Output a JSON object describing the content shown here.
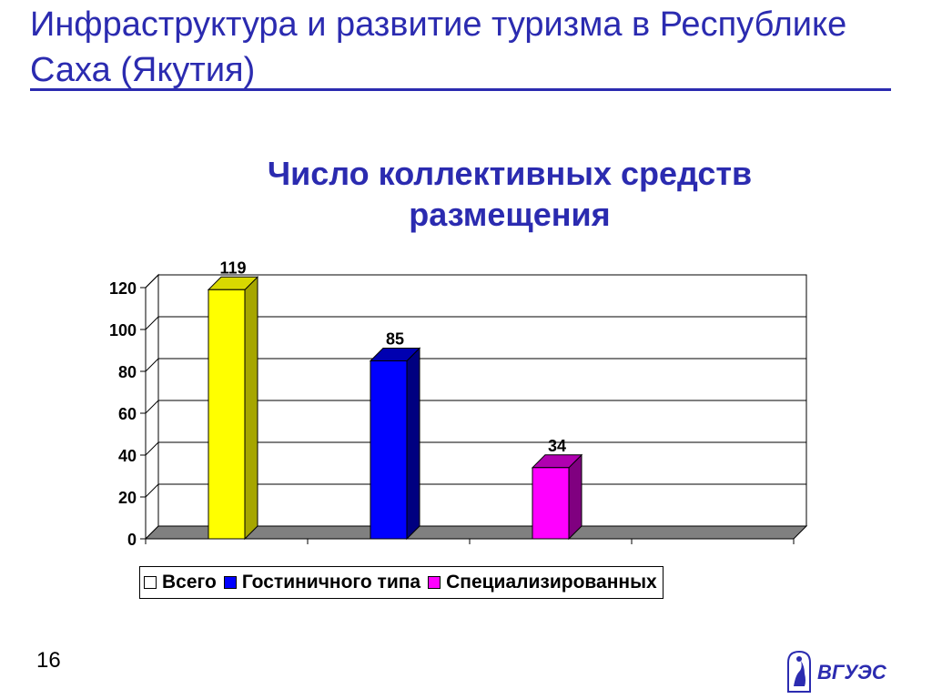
{
  "slide": {
    "title": "Инфраструктура и развитие туризма в Республике Саха (Якутия)",
    "page_number": "16",
    "logo_text": "ВГУЭС"
  },
  "chart_data": {
    "type": "bar",
    "title": "Число коллективных средств размещения",
    "series": [
      {
        "name": "Всего",
        "value": 119,
        "color": "#ffff00",
        "side_color": "#a6a600",
        "top_color": "#d9d900"
      },
      {
        "name": "Гостиничного типа",
        "value": 85,
        "color": "#0000ff",
        "side_color": "#000080",
        "top_color": "#0000b0"
      },
      {
        "name": "Специализированных",
        "value": 34,
        "color": "#ff00ff",
        "side_color": "#800080",
        "top_color": "#b000b0"
      }
    ],
    "ylim": [
      0,
      120
    ],
    "yticks": [
      "0",
      "20",
      "40",
      "60",
      "80",
      "100",
      "120"
    ],
    "grid": true,
    "legend_position": "bottom",
    "legend_swatches": [
      "#ffffff",
      "#0000ff",
      "#ff00ff"
    ]
  }
}
